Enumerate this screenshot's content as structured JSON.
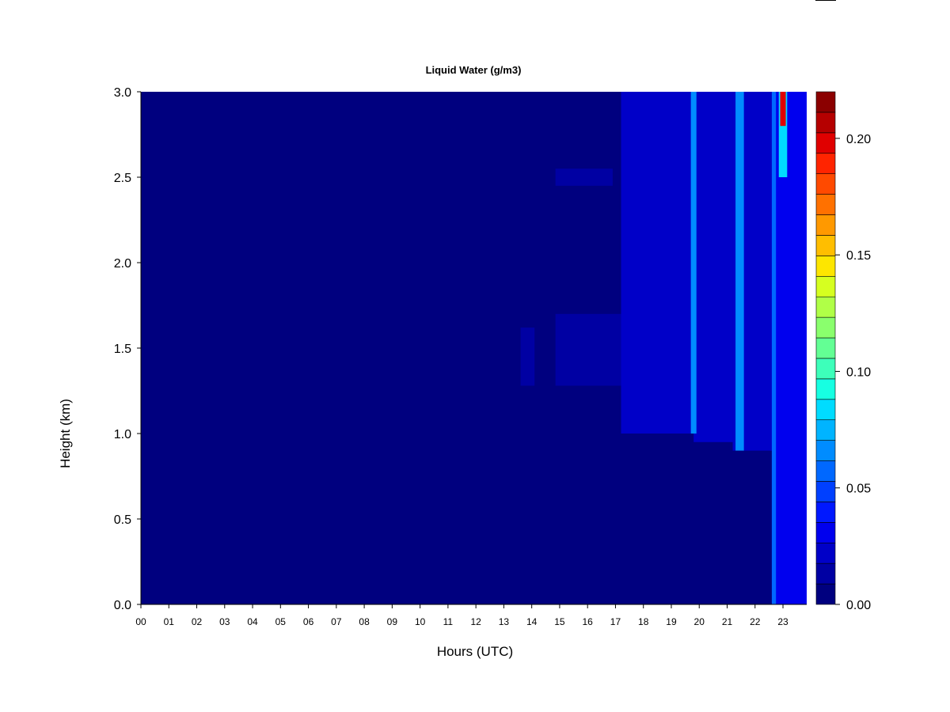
{
  "chart_data": {
    "type": "heatmap",
    "title": "Liquid Water (g/m3)",
    "xlabel": "Hours (UTC)",
    "ylabel": "Height (km)",
    "x_ticks": [
      "00",
      "01",
      "02",
      "03",
      "04",
      "05",
      "06",
      "07",
      "08",
      "09",
      "10",
      "11",
      "12",
      "13",
      "14",
      "15",
      "16",
      "17",
      "18",
      "19",
      "20",
      "21",
      "22",
      "23"
    ],
    "x_range": [
      0,
      23.85
    ],
    "y_ticks": [
      "0.0",
      "0.5",
      "1.0",
      "1.5",
      "2.0",
      "2.5",
      "3.0"
    ],
    "y_range": [
      0,
      3.0
    ],
    "colorbar": {
      "range": [
        0,
        0.22
      ],
      "levels": [
        0.0,
        0.01,
        0.02,
        0.03,
        0.04,
        0.05,
        0.06,
        0.07,
        0.08,
        0.09,
        0.1,
        0.11,
        0.12,
        0.13,
        0.14,
        0.15,
        0.16,
        0.17,
        0.18,
        0.19,
        0.2,
        0.21,
        0.22
      ],
      "tick_labels": [
        "0.00",
        "0.05",
        "0.10",
        "0.15",
        "0.20"
      ],
      "tick_values": [
        0.0,
        0.05,
        0.1,
        0.15,
        0.2
      ],
      "colors": [
        "#00007f",
        "#0000a3",
        "#0000c8",
        "#0000ee",
        "#0018ff",
        "#0040ff",
        "#0068ff",
        "#008cff",
        "#00b4ff",
        "#00dcff",
        "#17ffe2",
        "#3dffba",
        "#63ff94",
        "#8aff6d",
        "#b0ff47",
        "#d6ff20",
        "#fde600",
        "#ffbe00",
        "#ff9900",
        "#ff7100",
        "#ff4a00",
        "#ff2400",
        "#e00000",
        "#b50000",
        "#8b0000"
      ]
    },
    "features": [
      {
        "hours": [
          13.6,
          14.1
        ],
        "heights": [
          1.28,
          1.62
        ],
        "value": 0.01
      },
      {
        "hours": [
          14.85,
          17.2
        ],
        "heights": [
          1.28,
          1.7
        ],
        "value": 0.012
      },
      {
        "hours": [
          14.85,
          16.9
        ],
        "heights": [
          2.45,
          2.55
        ],
        "value": 0.012
      },
      {
        "hours": [
          17.2,
          19.8
        ],
        "heights": [
          1.0,
          3.0
        ],
        "value": 0.018
      },
      {
        "hours": [
          19.8,
          21.2
        ],
        "heights": [
          0.95,
          3.0
        ],
        "value": 0.02
      },
      {
        "hours": [
          21.2,
          22.7
        ],
        "heights": [
          0.9,
          3.0
        ],
        "value": 0.025
      },
      {
        "hours": [
          22.7,
          23.85
        ],
        "heights": [
          0.0,
          3.0
        ],
        "value": 0.03
      },
      {
        "hours": [
          19.7,
          19.9
        ],
        "heights": [
          1.0,
          3.0
        ],
        "value": 0.065
      },
      {
        "hours": [
          21.3,
          21.6
        ],
        "heights": [
          0.9,
          3.0
        ],
        "value": 0.07
      },
      {
        "hours": [
          22.6,
          22.75
        ],
        "heights": [
          0.0,
          3.0
        ],
        "value": 0.06
      },
      {
        "hours": [
          22.85,
          23.15
        ],
        "heights": [
          2.5,
          3.0
        ],
        "value": 0.08
      },
      {
        "hours": [
          22.9,
          23.1
        ],
        "heights": [
          2.8,
          3.0
        ],
        "value": 0.2
      }
    ]
  }
}
